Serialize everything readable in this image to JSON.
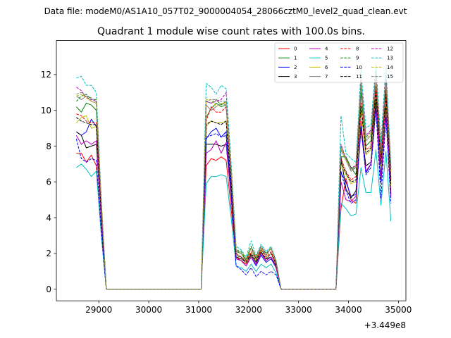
{
  "chart_data": {
    "type": "line",
    "suptitle": "Data file: modeM0/AS1A10_057T02_9000004054_28066cztM0_level2_quad_clean.evt",
    "title": "Quadrant 1 module wise count rates with 100.0s bins.",
    "xlabel": "",
    "ylabel": "",
    "x_offset_label": "+3.449e8",
    "xlim": [
      28150,
      35150
    ],
    "ylim": [
      -0.65,
      13.9
    ],
    "xticks": [
      29000,
      30000,
      31000,
      32000,
      33000,
      34000,
      35000
    ],
    "yticks": [
      0,
      2,
      4,
      6,
      8,
      10,
      12
    ],
    "grid": false,
    "legend": {
      "placement": "top-right",
      "columns": 4
    },
    "x": [
      28550,
      28650,
      28750,
      28850,
      28950,
      29050,
      29150,
      31050,
      31150,
      31250,
      31350,
      31450,
      31550,
      31650,
      31750,
      31850,
      31950,
      32050,
      32150,
      32250,
      32350,
      32450,
      32550,
      32650,
      33750,
      33850,
      33950,
      34050,
      34150,
      34250,
      34350,
      34450,
      34550,
      34650,
      34750,
      34850
    ],
    "gap_ranges": [
      [
        29150,
        31050
      ],
      [
        32650,
        33750
      ]
    ],
    "series": [
      {
        "name": "0",
        "color": "#ff0000",
        "dash": "solid",
        "values": [
          7.6,
          7.6,
          7.1,
          7.5,
          6.9,
          3.0,
          0,
          0,
          6.9,
          7.3,
          7.2,
          7.4,
          7.2,
          4.5,
          1.8,
          1.6,
          1.4,
          1.8,
          1.4,
          2.0,
          1.6,
          1.8,
          1.2,
          0,
          0,
          4.5,
          6.2,
          5.0,
          4.8,
          9.4,
          6.6,
          7.0,
          10.4,
          6.0,
          10.0,
          5.4
        ]
      },
      {
        "name": "1",
        "color": "#008000",
        "dash": "solid",
        "values": [
          10.2,
          9.9,
          10.4,
          10.3,
          10.0,
          4.5,
          0,
          0,
          9.6,
          10.1,
          10.4,
          10.2,
          10.3,
          6.5,
          2.1,
          2.0,
          1.6,
          2.3,
          1.7,
          2.2,
          1.9,
          2.3,
          1.5,
          0,
          0,
          7.4,
          7.4,
          6.8,
          6.4,
          11.0,
          8.0,
          8.3,
          11.3,
          7.2,
          11.2,
          6.2
        ]
      },
      {
        "name": "2",
        "color": "#0000ff",
        "dash": "solid",
        "values": [
          8.8,
          8.6,
          8.8,
          9.5,
          9.1,
          3.8,
          0,
          0,
          8.4,
          8.8,
          9.0,
          8.5,
          8.8,
          5.6,
          1.7,
          1.6,
          1.3,
          1.8,
          1.3,
          1.9,
          1.5,
          1.7,
          1.2,
          0,
          0,
          6.5,
          6.0,
          5.2,
          5.3,
          9.1,
          6.5,
          7.0,
          10.2,
          6.0,
          9.9,
          5.3
        ]
      },
      {
        "name": "3",
        "color": "#000000",
        "dash": "solid",
        "values": [
          8.8,
          8.6,
          7.9,
          8.0,
          8.1,
          3.9,
          0,
          0,
          8.1,
          8.1,
          8.1,
          8.0,
          8.1,
          5.2,
          1.8,
          1.7,
          1.5,
          1.9,
          1.5,
          2.0,
          1.7,
          1.8,
          1.3,
          0,
          0,
          7.4,
          5.6,
          5.1,
          5.5,
          9.0,
          6.9,
          7.1,
          10.6,
          6.2,
          10.2,
          5.2
        ]
      },
      {
        "name": "4",
        "color": "#bf00bf",
        "dash": "solid",
        "values": [
          8.6,
          8.1,
          8.3,
          8.1,
          8.3,
          3.8,
          0,
          0,
          7.6,
          7.8,
          8.3,
          7.6,
          8.2,
          5.1,
          1.7,
          1.6,
          1.3,
          1.8,
          1.4,
          2.0,
          1.6,
          1.8,
          1.2,
          0,
          0,
          6.0,
          5.0,
          4.9,
          5.2,
          8.9,
          6.6,
          7.0,
          10.2,
          6.3,
          9.9,
          5.1
        ]
      },
      {
        "name": "5",
        "color": "#00bfbf",
        "dash": "solid",
        "values": [
          6.8,
          7.0,
          6.7,
          6.3,
          6.6,
          3.0,
          0,
          0,
          5.9,
          6.3,
          6.3,
          6.4,
          6.3,
          4.0,
          1.3,
          1.2,
          1.0,
          1.4,
          1.0,
          1.4,
          1.2,
          1.4,
          0.9,
          0,
          0,
          4.8,
          4.5,
          4.1,
          4.2,
          6.8,
          5.4,
          5.4,
          7.8,
          4.7,
          7.7,
          3.8
        ]
      },
      {
        "name": "6",
        "color": "#bfbf00",
        "dash": "solid",
        "values": [
          9.3,
          9.6,
          9.7,
          9.0,
          9.1,
          4.3,
          0,
          0,
          9.1,
          9.4,
          9.3,
          9.3,
          9.4,
          6.0,
          1.9,
          1.8,
          1.5,
          2.0,
          1.6,
          2.1,
          1.7,
          2.0,
          1.4,
          0,
          0,
          7.0,
          6.4,
          5.9,
          6.0,
          10.0,
          7.5,
          7.8,
          11.0,
          6.9,
          10.7,
          5.8
        ]
      },
      {
        "name": "7",
        "color": "#808080",
        "dash": "solid",
        "values": [
          10.8,
          10.6,
          10.8,
          10.5,
          10.4,
          4.8,
          0,
          0,
          10.3,
          10.0,
          10.2,
          10.4,
          10.3,
          6.6,
          2.2,
          2.0,
          1.7,
          2.3,
          1.8,
          2.3,
          1.9,
          2.3,
          1.5,
          0,
          0,
          7.8,
          7.2,
          6.6,
          6.8,
          11.4,
          8.3,
          8.6,
          11.9,
          7.5,
          11.7,
          6.6
        ]
      },
      {
        "name": "8",
        "color": "#ff0000",
        "dash": "dashed",
        "values": [
          9.8,
          9.7,
          9.4,
          9.3,
          9.3,
          4.3,
          0,
          0,
          9.4,
          10.2,
          9.9,
          9.9,
          10.2,
          6.3,
          2.0,
          1.8,
          1.6,
          2.1,
          1.7,
          2.2,
          1.8,
          2.1,
          1.4,
          0,
          0,
          7.3,
          6.6,
          6.1,
          6.3,
          10.4,
          7.8,
          8.0,
          11.4,
          7.1,
          11.1,
          6.1
        ]
      },
      {
        "name": "9",
        "color": "#008000",
        "dash": "dashed",
        "values": [
          10.5,
          10.8,
          10.9,
          10.6,
          10.6,
          4.9,
          0,
          0,
          10.5,
          10.4,
          10.6,
          10.3,
          10.5,
          6.8,
          2.2,
          2.1,
          1.7,
          2.4,
          1.8,
          2.4,
          2.0,
          2.3,
          1.6,
          0,
          0,
          8.0,
          7.3,
          6.8,
          6.8,
          11.6,
          8.5,
          8.8,
          12.1,
          7.7,
          11.9,
          6.7
        ]
      },
      {
        "name": "10",
        "color": "#0000ff",
        "dash": "dashed",
        "values": [
          8.4,
          7.3,
          7.1,
          7.3,
          7.2,
          3.3,
          0,
          0,
          8.5,
          8.6,
          8.7,
          8.5,
          8.6,
          5.3,
          1.3,
          1.1,
          0.8,
          1.2,
          0.7,
          1.0,
          0.8,
          1.0,
          0.8,
          0,
          0,
          6.6,
          5.5,
          4.8,
          5.0,
          9.1,
          6.4,
          6.8,
          10.1,
          5.1,
          9.6,
          4.8
        ]
      },
      {
        "name": "11",
        "color": "#000000",
        "dash": "dashed",
        "values": [
          9.6,
          9.4,
          9.3,
          9.2,
          9.2,
          4.2,
          0,
          0,
          9.2,
          9.4,
          9.3,
          9.2,
          9.4,
          6.0,
          1.9,
          1.8,
          1.5,
          2.0,
          1.6,
          2.1,
          1.7,
          2.0,
          1.4,
          0,
          0,
          7.1,
          6.5,
          6.0,
          6.1,
          10.2,
          7.6,
          7.9,
          11.1,
          7.0,
          10.9,
          5.9
        ]
      },
      {
        "name": "12",
        "color": "#bf00bf",
        "dash": "dashed",
        "values": [
          11.3,
          11.1,
          10.7,
          10.6,
          10.5,
          4.8,
          0,
          0,
          10.5,
          10.4,
          10.5,
          10.6,
          11.0,
          6.8,
          2.2,
          2.0,
          1.7,
          2.3,
          1.8,
          2.4,
          1.9,
          2.3,
          1.5,
          0,
          0,
          8.1,
          7.3,
          6.8,
          6.9,
          11.7,
          8.6,
          8.9,
          12.2,
          7.8,
          12.0,
          6.8
        ]
      },
      {
        "name": "13",
        "color": "#00bfbf",
        "dash": "dashed",
        "values": [
          11.8,
          11.9,
          11.4,
          11.4,
          11.0,
          5.0,
          0,
          0,
          11.5,
          11.3,
          10.9,
          11.4,
          11.2,
          7.1,
          2.4,
          2.2,
          1.8,
          2.7,
          1.9,
          2.5,
          2.1,
          2.4,
          1.6,
          0,
          0,
          9.7,
          7.6,
          7.3,
          7.1,
          12.2,
          9.0,
          9.2,
          12.6,
          8.2,
          12.5,
          7.0
        ]
      },
      {
        "name": "14",
        "color": "#bfbf00",
        "dash": "dashed",
        "values": [
          10.8,
          10.9,
          10.7,
          10.5,
          10.4,
          4.8,
          0,
          0,
          10.6,
          10.6,
          10.2,
          10.4,
          10.4,
          6.7,
          2.2,
          2.0,
          1.7,
          2.3,
          1.8,
          2.3,
          1.9,
          2.3,
          1.5,
          0,
          0,
          7.9,
          7.2,
          6.7,
          6.8,
          11.5,
          8.4,
          8.7,
          12.0,
          7.6,
          11.8,
          6.6
        ]
      },
      {
        "name": "15",
        "color": "#808080",
        "dash": "dashed",
        "values": [
          10.9,
          11.0,
          10.8,
          10.7,
          10.5,
          4.9,
          0,
          0,
          10.5,
          10.6,
          10.6,
          10.5,
          10.5,
          6.7,
          2.2,
          2.0,
          1.7,
          2.3,
          1.8,
          2.4,
          1.9,
          2.3,
          1.5,
          0,
          0,
          8.0,
          7.3,
          6.7,
          6.8,
          11.6,
          8.5,
          8.8,
          12.1,
          7.7,
          11.9,
          6.7
        ]
      }
    ]
  }
}
